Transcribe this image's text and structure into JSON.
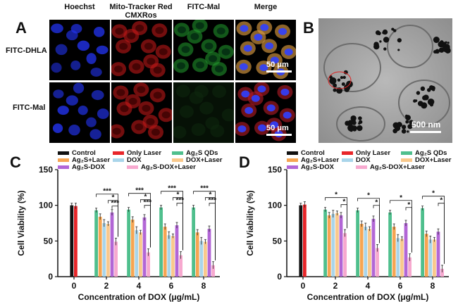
{
  "panelA": {
    "letter": "A",
    "columns": [
      "Hoechst",
      "Mito-Tracker Red CMXRos",
      "FITC-Mal",
      "Merge"
    ],
    "col_line1": [
      "Hoechst",
      "Mito-Tracker Red",
      "FITC-Mal",
      "Merge"
    ],
    "col_line2": [
      "",
      "CMXRos",
      "",
      ""
    ],
    "rows": [
      "FITC-DHLA",
      "FITC-Mal"
    ],
    "scale": "50 μm"
  },
  "panelB": {
    "letter": "B",
    "scale": "500 nm"
  },
  "colors": {
    "Control": "#111111",
    "Only Laser": "#e8262a",
    "Ag2S QDs": "#4fbf8d",
    "Ag2S+Laser": "#f6a552",
    "DOX": "#a9d5ea",
    "DOX+Laser": "#f9c98c",
    "Ag2S-DOX": "#b266d6",
    "Ag2S-DOX+Laser": "#f7a9cf"
  },
  "chart_data": [
    {
      "type": "bar",
      "panel": "C",
      "xlabel": "Concentration of DOX (μg/mL)",
      "ylabel": "Cell Viability (%)",
      "ylim": [
        0,
        150
      ],
      "yticks": [
        "0",
        "50",
        "100",
        "150"
      ],
      "xtick_labels": [
        "0",
        "2",
        "4",
        "6",
        "8"
      ],
      "legend": {
        "row1": [
          "Control",
          "Only Laser",
          "Ag₂S QDs"
        ],
        "row2": [
          "Ag₂S+Laser",
          "DOX",
          "DOX+Laser"
        ],
        "row3": [
          "Ag₂S-DOX",
          "Ag₂S-DOX+Laser"
        ]
      },
      "groups": [
        {
          "x": "0",
          "series": [
            "Control",
            "Only Laser"
          ],
          "values": [
            100,
            99
          ]
        },
        {
          "x": "2",
          "series": [
            "Ag2S QDs",
            "Ag2S+Laser",
            "DOX",
            "DOX+Laser",
            "Ag2S-DOX",
            "Ag2S-DOX+Laser"
          ],
          "values": [
            93,
            84,
            75,
            74,
            90,
            49
          ]
        },
        {
          "x": "4",
          "series": [
            "Ag2S QDs",
            "Ag2S+Laser",
            "DOX",
            "DOX+Laser",
            "Ag2S-DOX",
            "Ag2S-DOX+Laser"
          ],
          "values": [
            94,
            80,
            65,
            62,
            83,
            34
          ]
        },
        {
          "x": "6",
          "series": [
            "Ag2S QDs",
            "Ag2S+Laser",
            "DOX",
            "DOX+Laser",
            "Ag2S-DOX",
            "Ag2S-DOX+Laser"
          ],
          "values": [
            97,
            70,
            58,
            57,
            72,
            30
          ]
        },
        {
          "x": "8",
          "series": [
            "Ag2S QDs",
            "Ag2S+Laser",
            "DOX",
            "DOX+Laser",
            "Ag2S-DOX",
            "Ag2S-DOX+Laser"
          ],
          "values": [
            97,
            62,
            50,
            49,
            67,
            16
          ]
        }
      ],
      "significance": [
        "***",
        "*",
        "***",
        "***",
        "*",
        "***",
        "***",
        "*",
        "***",
        "***",
        "*",
        "***"
      ]
    },
    {
      "type": "bar",
      "panel": "D",
      "xlabel": "Concentration of DOX (μg/mL)",
      "ylabel": "Cell Viability (%)",
      "ylim": [
        0,
        150
      ],
      "yticks": [
        "0",
        "50",
        "100",
        "150"
      ],
      "xtick_labels": [
        "0",
        "2",
        "4",
        "6",
        "8"
      ],
      "legend": {
        "row1": [
          "Control",
          "Only Laser",
          "Ag₂S QDs"
        ],
        "row2": [
          "Ag₂S+Laser",
          "DOX",
          "DOX+Laser"
        ],
        "row3": [
          "Ag₂S-DOX",
          "Ag₂S-DOX+Laser"
        ]
      },
      "groups": [
        {
          "x": "0",
          "series": [
            "Control",
            "Only Laser"
          ],
          "values": [
            100,
            101
          ]
        },
        {
          "x": "2",
          "series": [
            "Ag2S QDs",
            "Ag2S+Laser",
            "DOX",
            "DOX+Laser",
            "Ag2S-DOX",
            "Ag2S-DOX+Laser"
          ],
          "values": [
            94,
            86,
            88,
            89,
            86,
            61
          ]
        },
        {
          "x": "4",
          "series": [
            "Ag2S QDs",
            "Ag2S+Laser",
            "DOX",
            "DOX+Laser",
            "Ag2S-DOX",
            "Ag2S-DOX+Laser"
          ],
          "values": [
            93,
            74,
            70,
            67,
            81,
            40
          ]
        },
        {
          "x": "6",
          "series": [
            "Ag2S QDs",
            "Ag2S+Laser",
            "DOX",
            "DOX+Laser",
            "Ag2S-DOX",
            "Ag2S-DOX+Laser"
          ],
          "values": [
            90,
            70,
            54,
            53,
            75,
            27
          ]
        },
        {
          "x": "8",
          "series": [
            "Ag2S QDs",
            "Ag2S+Laser",
            "DOX",
            "DOX+Laser",
            "Ag2S-DOX",
            "Ag2S-DOX+Laser"
          ],
          "values": [
            96,
            60,
            52,
            52,
            63,
            11
          ]
        }
      ],
      "significance": [
        "*",
        "*",
        "*",
        "*",
        "*",
        "*",
        "*",
        "*"
      ]
    }
  ]
}
